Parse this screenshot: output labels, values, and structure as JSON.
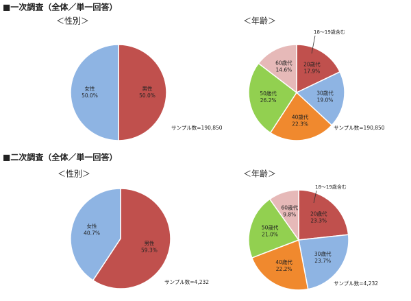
{
  "headings": [
    "■一次調査（全体／単一回答）",
    "■二次調査（全体／単一回答）"
  ],
  "chart_data": [
    {
      "type": "pie",
      "title": "＜性別＞",
      "note": "サンプル数=190,850",
      "categories": [
        "男性",
        "女性"
      ],
      "values": [
        50.0,
        50.0
      ],
      "value_labels": [
        "50.0%",
        "50.0%"
      ],
      "colors": [
        "#c0504d",
        "#8eb4e3"
      ]
    },
    {
      "type": "pie",
      "title": "＜年齢＞",
      "note": "サンプル数=190,850",
      "annotation": "18～19歳含む",
      "categories": [
        "20歳代",
        "30歳代",
        "40歳代",
        "50歳代",
        "60歳代"
      ],
      "values": [
        17.9,
        19.0,
        22.3,
        26.2,
        14.6
      ],
      "value_labels": [
        "17.9%",
        "19.0%",
        "22.3%",
        "26.2%",
        "14.6%"
      ],
      "colors": [
        "#c0504d",
        "#8eb4e3",
        "#f0892e",
        "#92d050",
        "#e6b9b8"
      ]
    },
    {
      "type": "pie",
      "title": "＜性別＞",
      "note": "サンプル数=4,232",
      "categories": [
        "男性",
        "女性"
      ],
      "values": [
        59.3,
        40.7
      ],
      "value_labels": [
        "59.3%",
        "40.7%"
      ],
      "colors": [
        "#c0504d",
        "#8eb4e3"
      ]
    },
    {
      "type": "pie",
      "title": "＜年齢＞",
      "note": "サンプル数=4,232",
      "annotation": "18～19歳含む",
      "categories": [
        "20歳代",
        "30歳代",
        "40歳代",
        "50歳代",
        "60歳代"
      ],
      "values": [
        23.3,
        23.7,
        22.2,
        21.0,
        9.8
      ],
      "value_labels": [
        "23.3%",
        "23.7%",
        "22.2%",
        "21.0%",
        "9.8%"
      ],
      "colors": [
        "#c0504d",
        "#8eb4e3",
        "#f0892e",
        "#92d050",
        "#e6b9b8"
      ]
    }
  ]
}
